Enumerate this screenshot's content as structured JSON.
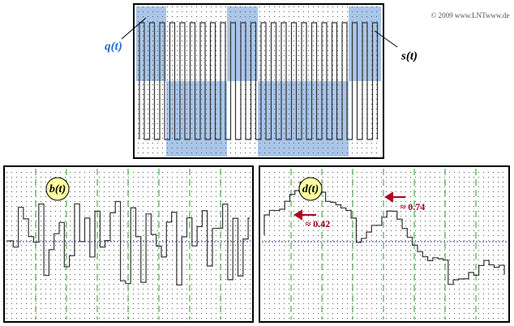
{
  "copyright": "© 2009 www.LNTwww.de",
  "top_panel": {
    "q_label": "q(t)",
    "s_label": "s(t)"
  },
  "left_panel": {
    "label": "b(t)"
  },
  "right_panel": {
    "label": "d(t)",
    "annotations": [
      "≈ 0.42",
      "≈ 0.74"
    ]
  }
}
